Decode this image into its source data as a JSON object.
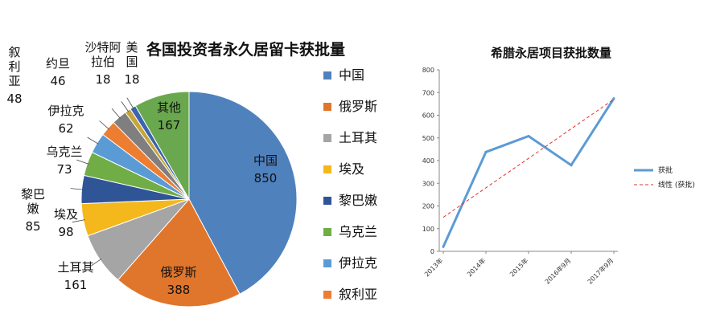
{
  "chart_data": [
    {
      "type": "pie",
      "title": "各国投资者永久居留卡获批量",
      "categories": [
        "中国",
        "俄罗斯",
        "土耳其",
        "埃及",
        "黎巴嫩",
        "乌克兰",
        "伊拉克",
        "叙利亚",
        "约旦",
        "沙特阿拉伯",
        "美国",
        "其他"
      ],
      "values": [
        850,
        388,
        161,
        98,
        85,
        73,
        62,
        48,
        46,
        18,
        18,
        167
      ],
      "colors": [
        "#4f81bd",
        "#e0762b",
        "#a5a5a5",
        "#f4b81c",
        "#2f5597",
        "#70ad47",
        "#5b9bd5",
        "#ed7d31",
        "#7f7f7f",
        "#c7a53a",
        "#3b64ad",
        "#6aa84f"
      ],
      "slice_labels": [
        {
          "name": "中国",
          "value": "850"
        },
        {
          "name": "俄罗斯",
          "value": "388"
        },
        {
          "name": "土耳其",
          "value": "161"
        },
        {
          "name": "埃及",
          "value": "98"
        },
        {
          "name": "黎巴\n嫩",
          "value": "85"
        },
        {
          "name": "乌克兰",
          "value": "73"
        },
        {
          "name": "伊拉克",
          "value": "62"
        },
        {
          "name": "叙\n利\n亚",
          "value": "48"
        },
        {
          "name": "约旦",
          "value": "46"
        },
        {
          "name": "沙特阿\n拉伯",
          "value": "18"
        },
        {
          "name": "美\n国",
          "value": "18"
        },
        {
          "name": "其他",
          "value": "167"
        }
      ],
      "legend": [
        "中国",
        "俄罗斯",
        "土耳其",
        "埃及",
        "黎巴嫩",
        "乌克兰",
        "伊拉克",
        "叙利亚"
      ],
      "legend_placement": "right"
    },
    {
      "type": "line",
      "title": "希腊永居项目获批数量",
      "x": [
        "2013年",
        "2014年",
        "2015年",
        "2016年9月",
        "2017年9月"
      ],
      "series": [
        {
          "name": "获批",
          "values": [
            20,
            438,
            508,
            380,
            674
          ],
          "color": "#5b9bd5"
        },
        {
          "name": "线性 (获批)",
          "values": [
            150,
            280,
            410,
            540,
            670
          ],
          "color": "#e03030",
          "dashed": true
        }
      ],
      "ylim": [
        0,
        800
      ],
      "yticks": [
        0,
        100,
        200,
        300,
        400,
        500,
        600,
        700,
        800
      ],
      "grid": false,
      "legend_placement": "right"
    }
  ]
}
